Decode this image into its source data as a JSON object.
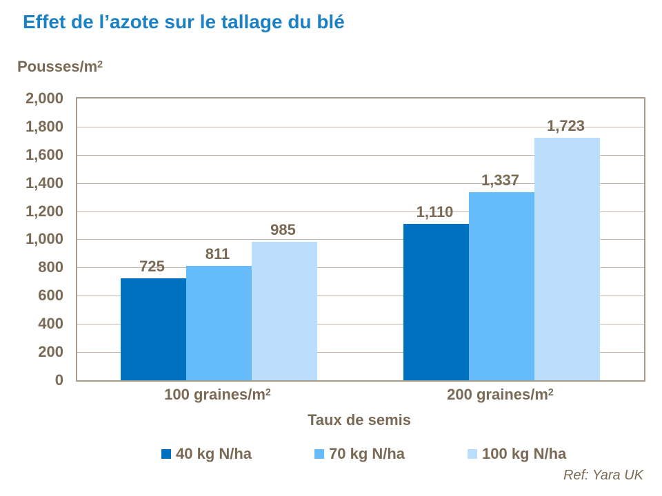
{
  "slide": {
    "title": "Effet de l’azote sur le tallage du blé",
    "reference": "Ref: Yara UK"
  },
  "colors": {
    "title": "#1B80C4",
    "text": "#7A6A55",
    "plot_border": "#A89B8B",
    "gridline": "#BFB4A5",
    "background": "#FFFFFF"
  },
  "chart_data": {
    "type": "bar",
    "title": "Effet de l’azote sur le tallage du blé",
    "y_axis_title": {
      "base": "Pousses/m",
      "sup": "2"
    },
    "x_axis_title": "Taux de semis",
    "ylim": [
      0,
      2000
    ],
    "ytick_step": 200,
    "ytick_labels": [
      "0",
      "200",
      "400",
      "600",
      "800",
      "1,000",
      "1,200",
      "1,400",
      "1,600",
      "1,800",
      "2,000"
    ],
    "grid": true,
    "legend_position": "bottom",
    "categories": [
      {
        "base": "100 graines/m",
        "sup": "2"
      },
      {
        "base": "200 graines/m",
        "sup": "2"
      }
    ],
    "series": [
      {
        "name": "40 kg N/ha",
        "color": "#0071C0",
        "values": [
          725,
          1110
        ],
        "labels": [
          "725",
          "1,110"
        ]
      },
      {
        "name": "70 kg N/ha",
        "color": "#66BCFA",
        "values": [
          811,
          1337
        ],
        "labels": [
          "811",
          "1,337"
        ]
      },
      {
        "name": "100 kg N/ha",
        "color": "#BADEFB",
        "values": [
          985,
          1723
        ],
        "labels": [
          "985",
          "1,723"
        ]
      }
    ]
  }
}
